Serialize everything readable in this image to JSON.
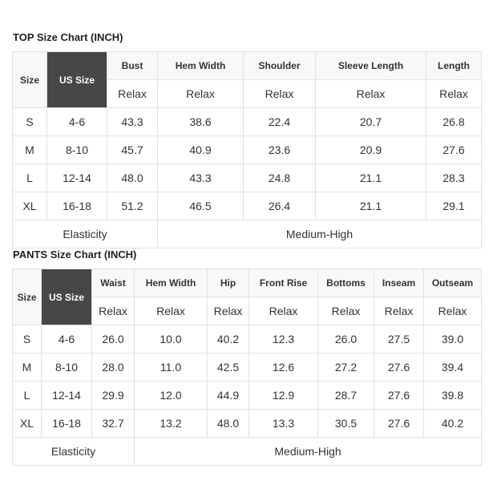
{
  "top": {
    "title": "TOP Size Chart (INCH)",
    "size_header": "Size",
    "us_size_header": "US Size",
    "measurements": [
      "Bust",
      "Hem Width",
      "Shoulder",
      "Sleeve Length",
      "Length"
    ],
    "fit": [
      "Relax",
      "Relax",
      "Relax",
      "Relax",
      "Relax"
    ],
    "rows": [
      {
        "size": "S",
        "us": "4-6",
        "values": [
          "43.3",
          "38.6",
          "22.4",
          "20.7",
          "26.8"
        ]
      },
      {
        "size": "M",
        "us": "8-10",
        "values": [
          "45.7",
          "40.9",
          "23.6",
          "20.9",
          "27.6"
        ]
      },
      {
        "size": "L",
        "us": "12-14",
        "values": [
          "48.0",
          "43.3",
          "24.8",
          "21.1",
          "28.3"
        ]
      },
      {
        "size": "XL",
        "us": "16-18",
        "values": [
          "51.2",
          "46.5",
          "26.4",
          "21.1",
          "29.1"
        ]
      }
    ],
    "elasticity_label": "Elasticity",
    "elasticity_value": "Medium-High"
  },
  "pants": {
    "title": "PANTS Size Chart (INCH)",
    "size_header": "Size",
    "us_size_header": "US Size",
    "measurements": [
      "Waist",
      "Hem Width",
      "Hip",
      "Front Rise",
      "Bottoms",
      "Inseam",
      "Outseam"
    ],
    "fit": [
      "Relax",
      "Relax",
      "Relax",
      "Relax",
      "Relax",
      "Relax",
      "Relax"
    ],
    "rows": [
      {
        "size": "S",
        "us": "4-6",
        "values": [
          "26.0",
          "10.0",
          "40.2",
          "12.3",
          "26.0",
          "27.5",
          "39.0"
        ]
      },
      {
        "size": "M",
        "us": "8-10",
        "values": [
          "28.0",
          "11.0",
          "42.5",
          "12.6",
          "27.2",
          "27.6",
          "39.4"
        ]
      },
      {
        "size": "L",
        "us": "12-14",
        "values": [
          "29.9",
          "12.0",
          "44.9",
          "12.9",
          "28.7",
          "27.6",
          "39.8"
        ]
      },
      {
        "size": "XL",
        "us": "16-18",
        "values": [
          "32.7",
          "13.2",
          "48.0",
          "13.3",
          "30.5",
          "27.6",
          "40.2"
        ]
      }
    ],
    "elasticity_label": "Elasticity",
    "elasticity_value": "Medium-High"
  },
  "colors": {
    "us_size_bg": "#474747",
    "header_bg": "#f8f8f8",
    "border": "#e1e1e1"
  }
}
